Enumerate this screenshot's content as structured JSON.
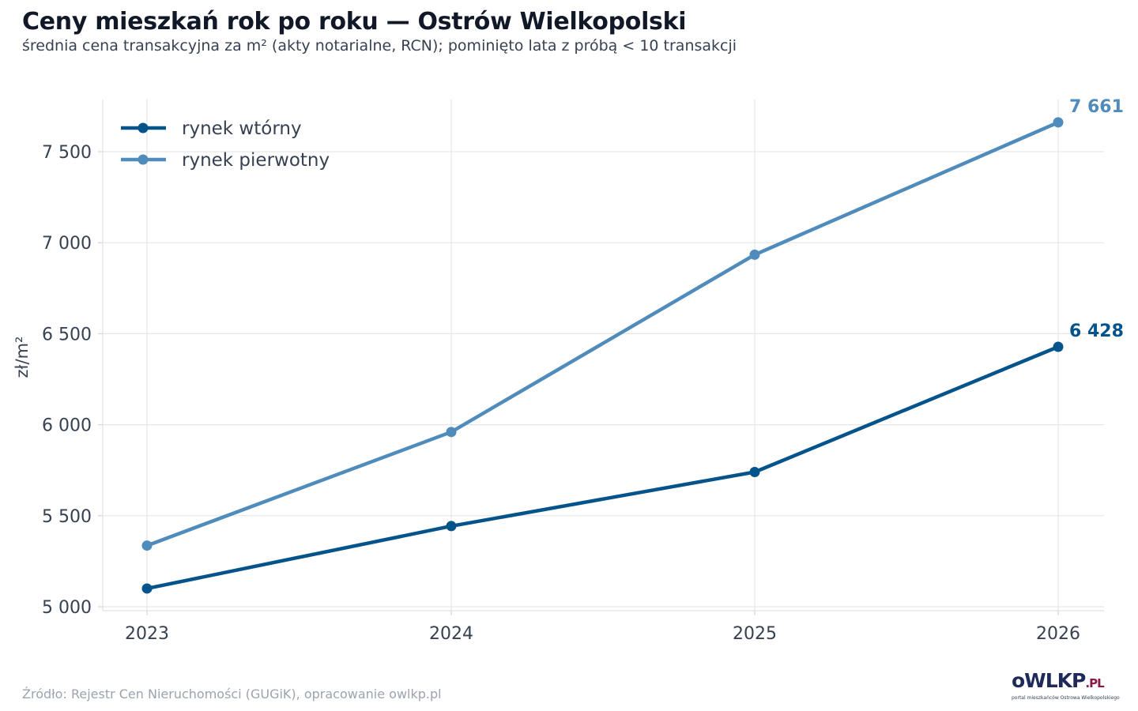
{
  "title": "Ceny mieszkań rok po roku — Ostrów Wielkopolski",
  "subtitle": "średnia cena transakcyjna za m² (akty notarialne, RCN); pominięto lata z próbą < 10 transakcji",
  "source": "Źródło: Rejestr Cen Nieruchomości (GUGiK), opracowanie owlkp.pl",
  "logo": {
    "part1": "oWLKP",
    "part2": ".PL",
    "tagline": "portal mieszkańców Ostrowa Wielkopolskiego",
    "color1": "#1f2a5a",
    "color2": "#8b1a4a"
  },
  "chart_data": {
    "type": "line",
    "x": [
      2023,
      2024,
      2025,
      2026
    ],
    "x_tick_labels": [
      "2023",
      "2024",
      "2025",
      "2026"
    ],
    "ylabel": "zł/m²",
    "ylim": [
      4990,
      7790
    ],
    "y_ticks": [
      5000,
      5500,
      6000,
      6500,
      7000,
      7500
    ],
    "y_tick_labels": [
      "5 000",
      "5 500",
      "6 000",
      "6 500",
      "7 000",
      "7 500"
    ],
    "grid": true,
    "legend_position": "top-left",
    "series": [
      {
        "name": "rynek wtórny",
        "color": "#04538a",
        "values": [
          5100,
          5443,
          5740,
          6428
        ],
        "end_label": "6 428"
      },
      {
        "name": "rynek pierwotny",
        "color": "#4f8bbb",
        "values": [
          5336,
          5960,
          6934,
          7661
        ],
        "end_label": "7 661"
      }
    ]
  }
}
